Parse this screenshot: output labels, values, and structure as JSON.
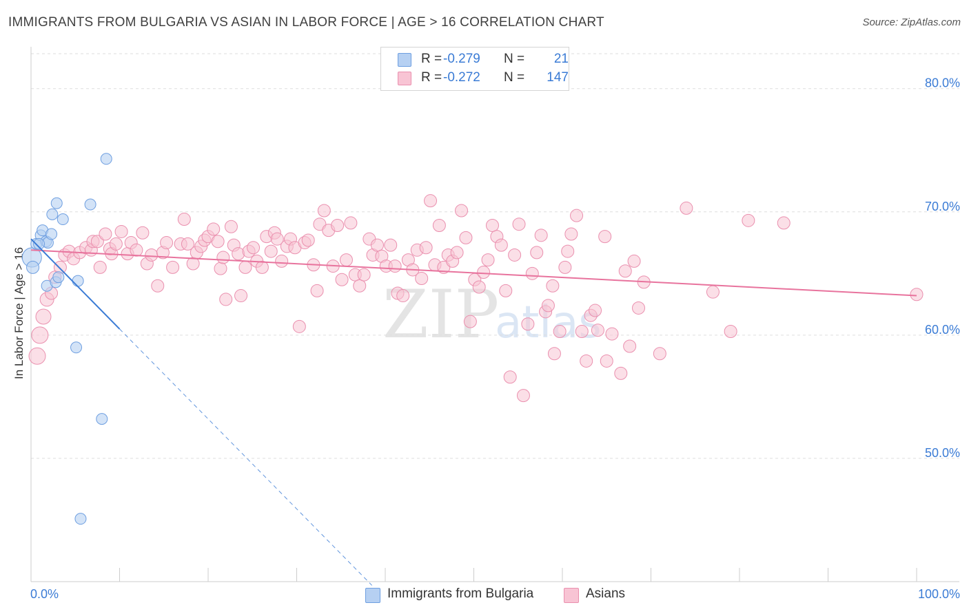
{
  "title": "IMMIGRANTS FROM BULGARIA VS ASIAN IN LABOR FORCE | AGE > 16 CORRELATION CHART",
  "source": "Source: ZipAtlas.com",
  "watermark": {
    "zip": "ZIP",
    "atlas": "atlas"
  },
  "legend": {
    "r_label": "R =",
    "n_label": "N =",
    "rows": [
      {
        "r": "-0.279",
        "n": "21"
      },
      {
        "r": "-0.272",
        "n": "147"
      }
    ]
  },
  "bottom_legend": {
    "series1": "Immigrants from Bulgaria",
    "series2": "Asians"
  },
  "chart_data": {
    "type": "scatter",
    "title": "IMMIGRANTS FROM BULGARIA VS ASIAN IN LABOR FORCE | AGE > 16 CORRELATION CHART",
    "xlabel": "",
    "ylabel": "In Labor Force | Age > 16",
    "xlim": [
      0,
      100
    ],
    "ylim": [
      40,
      83
    ],
    "x_tick_labels": [
      "0.0%",
      "100.0%"
    ],
    "y_ticks": [
      50,
      60,
      70,
      80
    ],
    "y_tick_labels": [
      "50.0%",
      "60.0%",
      "70.0%",
      "80.0%"
    ],
    "colors": {
      "series1_fill": "#b6d0f2",
      "series1_stroke": "#6d9ee0",
      "series1_line": "#3a7bd5",
      "series2_fill": "#f8c4d4",
      "series2_stroke": "#ea8fae",
      "series2_line": "#e8739d",
      "axis_text": "#3a7bd5",
      "grid": "#dddddd"
    },
    "series": [
      {
        "name": "Immigrants from Bulgaria",
        "r": -0.279,
        "n": 21,
        "trend": {
          "x0": 0.0,
          "y0": 67.8,
          "x1": 10.0,
          "y1": 60.5,
          "dash_to_x": 38.5
        },
        "points": [
          [
            0.1,
            66.3,
            14
          ],
          [
            0.2,
            65.5,
            9
          ],
          [
            0.6,
            67.4,
            8
          ],
          [
            1.1,
            68.1,
            8
          ],
          [
            1.3,
            68.5,
            8
          ],
          [
            1.7,
            67.6,
            8
          ],
          [
            1.9,
            67.5,
            8
          ],
          [
            2.3,
            68.2,
            8
          ],
          [
            1.8,
            64.0,
            8
          ],
          [
            2.4,
            69.8,
            8
          ],
          [
            2.9,
            70.7,
            8
          ],
          [
            2.8,
            64.3,
            8
          ],
          [
            3.1,
            64.7,
            8
          ],
          [
            3.6,
            69.4,
            8
          ],
          [
            5.3,
            64.4,
            8
          ],
          [
            6.7,
            70.6,
            8
          ],
          [
            8.5,
            74.3,
            8
          ],
          [
            5.1,
            59.0,
            8
          ],
          [
            8.0,
            53.2,
            8
          ],
          [
            5.6,
            45.1,
            8
          ],
          [
            0.9,
            67.4,
            8
          ]
        ]
      },
      {
        "name": "Asians",
        "r": -0.272,
        "n": 147,
        "trend": {
          "x0": 0.0,
          "y0": 66.9,
          "x1": 100.0,
          "y1": 63.2
        },
        "points": [
          [
            0.7,
            58.3,
            12
          ],
          [
            1.0,
            60.0,
            12
          ],
          [
            1.4,
            61.5,
            11
          ],
          [
            1.8,
            62.9,
            10
          ],
          [
            2.3,
            63.4,
            9
          ],
          [
            2.7,
            64.7,
            9
          ],
          [
            3.3,
            65.5,
            9
          ],
          [
            3.8,
            66.5,
            9
          ],
          [
            4.3,
            66.8,
            9
          ],
          [
            4.8,
            66.2,
            9
          ],
          [
            5.5,
            66.7,
            9
          ],
          [
            6.2,
            67.1,
            9
          ],
          [
            6.8,
            66.9,
            9
          ],
          [
            7.0,
            67.6,
            9
          ],
          [
            7.5,
            67.6,
            9
          ],
          [
            7.8,
            65.5,
            9
          ],
          [
            8.4,
            68.2,
            9
          ],
          [
            8.9,
            67.0,
            9
          ],
          [
            9.1,
            66.6,
            9
          ],
          [
            9.6,
            67.4,
            9
          ],
          [
            10.2,
            68.4,
            9
          ],
          [
            10.9,
            66.6,
            9
          ],
          [
            11.3,
            67.5,
            9
          ],
          [
            11.9,
            66.9,
            9
          ],
          [
            12.6,
            68.3,
            9
          ],
          [
            13.1,
            65.8,
            9
          ],
          [
            13.6,
            66.5,
            9
          ],
          [
            14.3,
            64.0,
            9
          ],
          [
            14.9,
            66.7,
            9
          ],
          [
            15.3,
            67.5,
            9
          ],
          [
            16.0,
            65.5,
            9
          ],
          [
            16.9,
            67.4,
            9
          ],
          [
            17.3,
            69.4,
            9
          ],
          [
            17.7,
            67.4,
            9
          ],
          [
            18.3,
            65.8,
            9
          ],
          [
            18.7,
            66.7,
            9
          ],
          [
            19.2,
            67.2,
            9
          ],
          [
            19.6,
            67.7,
            9
          ],
          [
            20.0,
            68.0,
            9
          ],
          [
            20.6,
            68.6,
            9
          ],
          [
            21.1,
            67.6,
            9
          ],
          [
            21.4,
            65.4,
            9
          ],
          [
            21.7,
            66.3,
            9
          ],
          [
            22.0,
            62.9,
            9
          ],
          [
            22.6,
            68.8,
            9
          ],
          [
            22.9,
            67.3,
            9
          ],
          [
            23.4,
            66.6,
            9
          ],
          [
            23.7,
            63.2,
            9
          ],
          [
            24.2,
            65.5,
            9
          ],
          [
            24.6,
            66.8,
            9
          ],
          [
            25.1,
            67.1,
            9
          ],
          [
            25.5,
            66.0,
            9
          ],
          [
            26.1,
            65.5,
            9
          ],
          [
            26.6,
            68.0,
            9
          ],
          [
            27.1,
            66.8,
            9
          ],
          [
            27.5,
            68.3,
            9
          ],
          [
            27.8,
            67.8,
            9
          ],
          [
            28.3,
            66.0,
            9
          ],
          [
            28.9,
            67.2,
            9
          ],
          [
            29.3,
            67.8,
            9
          ],
          [
            29.8,
            67.1,
            9
          ],
          [
            30.3,
            60.7,
            9
          ],
          [
            30.9,
            67.5,
            9
          ],
          [
            31.3,
            67.7,
            9
          ],
          [
            31.9,
            65.7,
            9
          ],
          [
            32.3,
            63.6,
            9
          ],
          [
            32.6,
            69.0,
            9
          ],
          [
            33.1,
            70.1,
            9
          ],
          [
            33.6,
            68.5,
            9
          ],
          [
            34.1,
            65.6,
            9
          ],
          [
            34.6,
            68.9,
            9
          ],
          [
            35.1,
            64.5,
            9
          ],
          [
            35.6,
            66.1,
            9
          ],
          [
            36.1,
            69.1,
            9
          ],
          [
            36.6,
            64.9,
            9
          ],
          [
            37.1,
            64.0,
            9
          ],
          [
            37.6,
            64.9,
            9
          ],
          [
            38.2,
            67.8,
            9
          ],
          [
            38.6,
            66.5,
            9
          ],
          [
            39.1,
            67.3,
            9
          ],
          [
            39.6,
            66.4,
            9
          ],
          [
            40.1,
            65.6,
            9
          ],
          [
            40.6,
            67.3,
            9
          ],
          [
            41.1,
            65.6,
            9
          ],
          [
            41.4,
            63.4,
            9
          ],
          [
            42.0,
            63.2,
            9
          ],
          [
            42.6,
            66.1,
            9
          ],
          [
            43.1,
            65.3,
            9
          ],
          [
            43.6,
            66.9,
            9
          ],
          [
            44.1,
            64.6,
            9
          ],
          [
            44.6,
            67.1,
            9
          ],
          [
            45.1,
            70.9,
            9
          ],
          [
            45.6,
            65.7,
            9
          ],
          [
            46.1,
            68.9,
            9
          ],
          [
            46.6,
            65.5,
            9
          ],
          [
            47.1,
            66.5,
            9
          ],
          [
            47.6,
            66.0,
            9
          ],
          [
            48.1,
            66.7,
            9
          ],
          [
            48.6,
            70.1,
            9
          ],
          [
            49.1,
            67.9,
            9
          ],
          [
            49.6,
            61.1,
            9
          ],
          [
            50.1,
            64.5,
            9
          ],
          [
            50.6,
            63.9,
            9
          ],
          [
            51.1,
            65.1,
            9
          ],
          [
            51.6,
            66.1,
            9
          ],
          [
            52.1,
            68.9,
            9
          ],
          [
            52.6,
            68.0,
            9
          ],
          [
            53.1,
            67.3,
            9
          ],
          [
            53.6,
            63.6,
            9
          ],
          [
            54.1,
            56.6,
            9
          ],
          [
            54.6,
            66.5,
            9
          ],
          [
            55.1,
            69.0,
            9
          ],
          [
            55.6,
            55.1,
            9
          ],
          [
            56.1,
            60.9,
            9
          ],
          [
            56.6,
            65.0,
            9
          ],
          [
            57.1,
            66.7,
            9
          ],
          [
            57.6,
            68.1,
            9
          ],
          [
            58.1,
            61.9,
            9
          ],
          [
            58.4,
            62.4,
            9
          ],
          [
            58.9,
            64.0,
            9
          ],
          [
            59.1,
            58.5,
            9
          ],
          [
            59.7,
            60.3,
            9
          ],
          [
            60.3,
            65.5,
            9
          ],
          [
            60.6,
            66.8,
            9
          ],
          [
            61.0,
            68.2,
            9
          ],
          [
            61.6,
            69.7,
            9
          ],
          [
            62.2,
            60.3,
            9
          ],
          [
            62.7,
            57.9,
            9
          ],
          [
            63.2,
            61.6,
            9
          ],
          [
            63.7,
            62.0,
            9
          ],
          [
            64.0,
            60.4,
            9
          ],
          [
            64.8,
            68.0,
            9
          ],
          [
            65.0,
            57.9,
            9
          ],
          [
            65.6,
            60.1,
            9
          ],
          [
            66.6,
            56.9,
            9
          ],
          [
            67.1,
            65.2,
            9
          ],
          [
            67.6,
            59.1,
            9
          ],
          [
            68.1,
            66.0,
            9
          ],
          [
            68.6,
            62.2,
            9
          ],
          [
            69.2,
            64.3,
            9
          ],
          [
            71.0,
            58.5,
            9
          ],
          [
            74.0,
            70.3,
            9
          ],
          [
            77.0,
            63.5,
            9
          ],
          [
            79.0,
            60.3,
            9
          ],
          [
            81.0,
            69.3,
            9
          ],
          [
            85.0,
            69.1,
            9
          ],
          [
            100.0,
            63.3,
            9
          ]
        ]
      }
    ]
  }
}
